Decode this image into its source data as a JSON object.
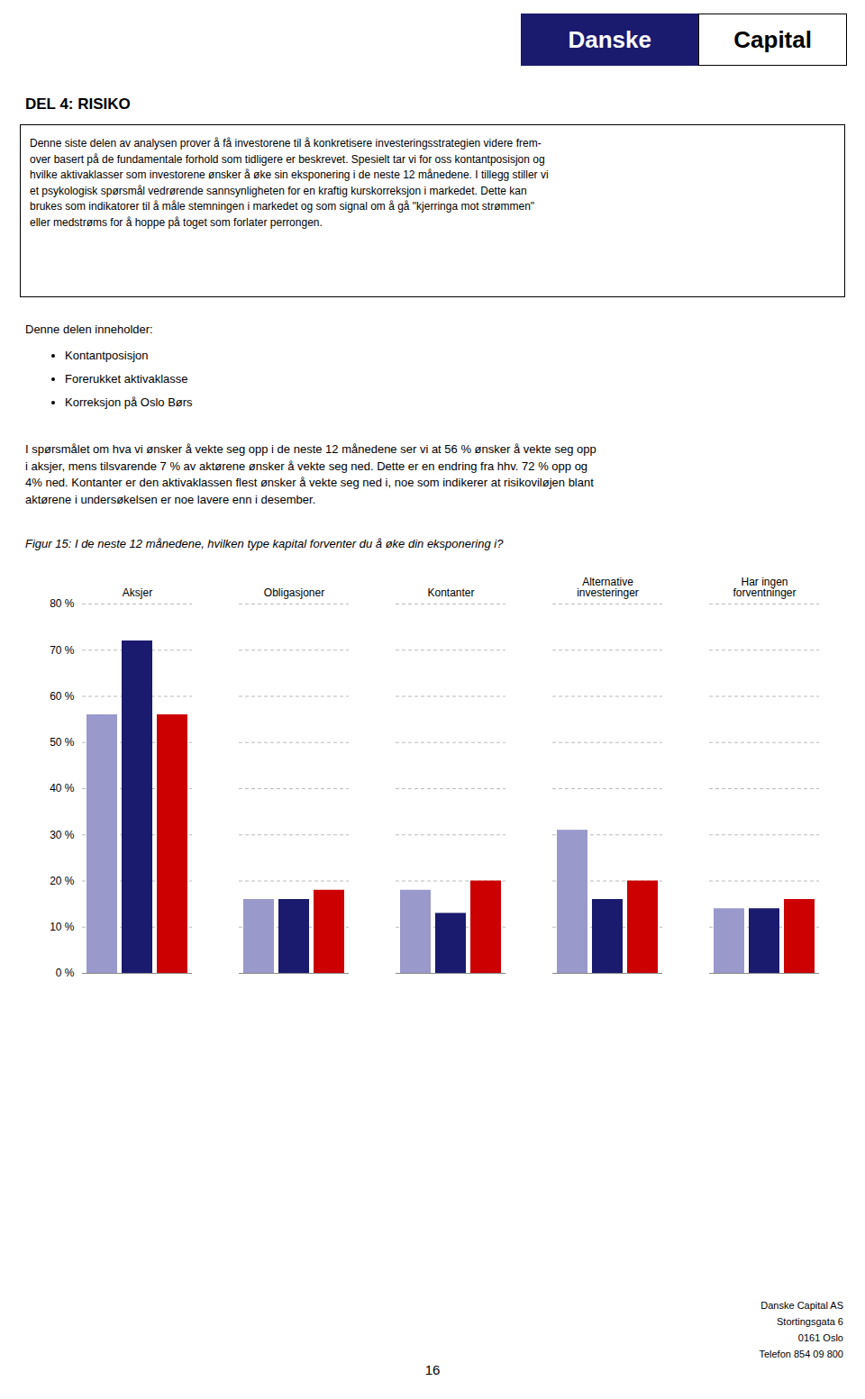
{
  "logo": [
    "Danske",
    "Capital"
  ],
  "page_title": "DEL 4: RISIKO",
  "box_text_lines": [
    "Denne siste delen av analysen prover å få investorene til å konkretisere investeringsstrategien videre frem-",
    "over basert på de fundamentale forhold som tidligere er beskrevet. Spesielt tar vi for oss kontantposisjon og",
    "hvilke aktivaklasser som investorene ønsker å øke sin eksponering i de neste 12 månedene. I tillegg stiller vi",
    "et psykologisk spørsmål vedrørende sannsynligheten for en kraftig kurskorreksjon i markedet. Dette kan",
    "brukes som indikatorer til å måle stemningen i markedet og som signal om å gå \"kjerringa mot strømmen\"",
    "eller medstrøms for å hoppe på toget som forlater perrongen."
  ],
  "intro": "Denne delen inneholder:",
  "bullet_items": [
    "Kontantposisjon",
    "Forerukket aktivaklasse",
    "Korreksjon på Oslo Børs"
  ],
  "body_text_lines": [
    "I spørsmålet om hva vi ønsker å vekte seg opp i de neste 12 månedene ser vi at 56 % ønsker å vekte seg opp",
    "i aksjer, mens tilsvarende 7 % av aktørene ønsker å vekte seg ned. Dette er en endring fra hhv. 72 % opp og",
    "4% ned. Kontanter er den aktivaklassen flest ønsker å vekte seg ned i, noe som indikerer at risikoviløjen blant",
    "aktørene i undersøkelsen er noe lavere enn i desember."
  ],
  "page_number": "16",
  "footer_lines": [
    "Danske Capital AS",
    "Stortingsgata 6",
    "0161 Oslo",
    "Telefon 854 09 800"
  ],
  "chart_data": {
    "type": "bar",
    "title": "Figur 15: I de neste 12 månedene, hvilken type kapital forventer du å øke din eksponering i?",
    "categories": [
      "Aksjer",
      "Obligasjoner",
      "Kontanter",
      "Alternative\ninvesteringer",
      "Har ingen\nforventninger"
    ],
    "series": [
      {
        "color": "#9999cc",
        "values": [
          56,
          16,
          18,
          31,
          14
        ]
      },
      {
        "color": "#1a1a6e",
        "values": [
          72,
          16,
          13,
          16,
          14
        ]
      },
      {
        "color": "#cc0000",
        "values": [
          56,
          18,
          20,
          20,
          16
        ]
      }
    ],
    "ylim": [
      0,
      80
    ],
    "yticks": [
      {
        "value": 0,
        "label": "0 %"
      },
      {
        "value": 10,
        "label": "10 %"
      },
      {
        "value": 20,
        "label": "20 %"
      },
      {
        "value": 30,
        "label": "30 %"
      },
      {
        "value": 40,
        "label": "40 %"
      },
      {
        "value": 50,
        "label": "50 %"
      },
      {
        "value": 60,
        "label": "60 %"
      },
      {
        "value": 70,
        "label": "70 %"
      },
      {
        "value": 80,
        "label": "80 %"
      }
    ],
    "grid": true
  }
}
